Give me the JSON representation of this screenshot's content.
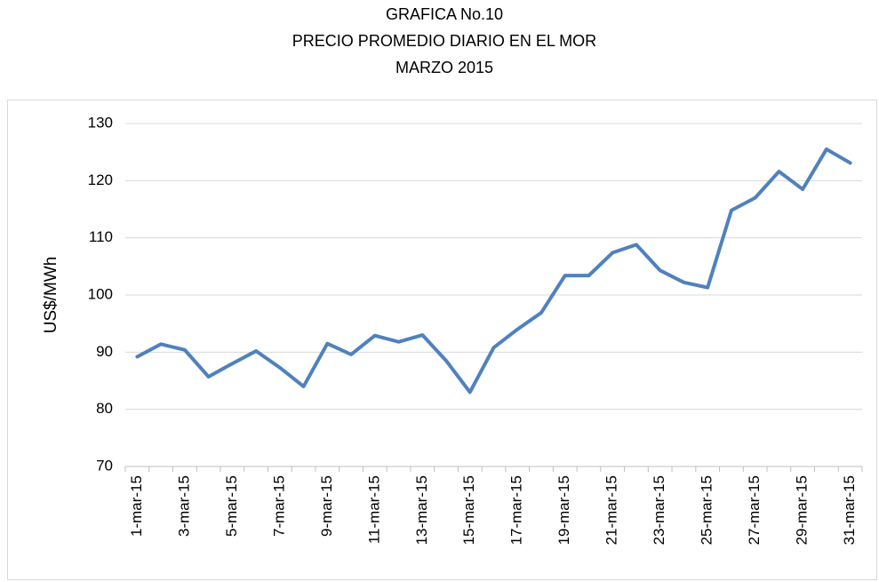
{
  "chart_data": {
    "type": "line",
    "title": [
      "GRAFICA No.10",
      "PRECIO PROMEDIO DIARIO EN EL MOR",
      "MARZO 2015"
    ],
    "y_label": "US$/MWh",
    "categories": [
      "1-mar-15",
      null,
      "3-mar-15",
      null,
      "5-mar-15",
      null,
      "7-mar-15",
      null,
      "9-mar-15",
      null,
      "11-mar-15",
      null,
      "13-mar-15",
      null,
      "15-mar-15",
      null,
      "17-mar-15",
      null,
      "19-mar-15",
      null,
      "21-mar-15",
      null,
      "23-mar-15",
      null,
      "25-mar-15",
      null,
      "27-mar-15",
      null,
      "29-mar-15",
      null,
      "31-mar-15"
    ],
    "series": [
      {
        "name": "US$/MWh",
        "color": "#4f81bd",
        "values": [
          89.2,
          91.4,
          90.4,
          85.7,
          88,
          90.2,
          87.3,
          84,
          91.5,
          89.6,
          92.9,
          91.8,
          93,
          88.5,
          83,
          90.8,
          94,
          96.9,
          103.4,
          103.4,
          107.4,
          108.8,
          104.3,
          102.2,
          101.3,
          114.8,
          117,
          121.6,
          118.5,
          125.5,
          123.1
        ]
      }
    ],
    "ylim": [
      70,
      130
    ],
    "yticks": [
      70,
      80,
      90,
      100,
      110,
      120,
      130
    ],
    "grid": true
  }
}
